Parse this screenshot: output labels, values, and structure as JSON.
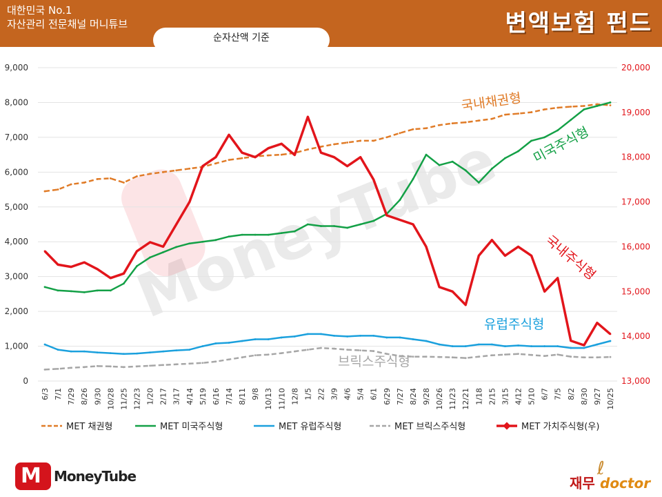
{
  "header": {
    "line1": "대한민국 No.1",
    "line2": "자산관리 전문채널 머니튜브",
    "subtitle": "순자산액 기준",
    "title": "변액보험 펀드"
  },
  "watermark": "MoneyTube",
  "footer": {
    "logo_text": "MoneyTube",
    "logo_letter": "M",
    "right_text_a": "재무",
    "right_text_b": "doctor"
  },
  "colors": {
    "bond": "#e07b27",
    "us": "#13a046",
    "europe": "#1aa0dd",
    "brics": "#a6a6a6",
    "value": "#e2151b",
    "header_bg": "#c4651f",
    "right_axis": "#e2151b"
  },
  "chart_data": {
    "type": "line",
    "x": [
      "6/3",
      "7/1",
      "7/29",
      "8/26",
      "9/30",
      "10/28",
      "11/25",
      "12/23",
      "1/20",
      "2/17",
      "3/17",
      "4/14",
      "5/19",
      "6/16",
      "7/14",
      "8/11",
      "9/8",
      "10/13",
      "11/10",
      "12/8",
      "1/5",
      "2/2",
      "3/9",
      "4/6",
      "5/4",
      "6/1",
      "6/29",
      "7/27",
      "8/24",
      "9/28",
      "10/26",
      "11/23",
      "12/21",
      "1/18",
      "2/15",
      "3/15",
      "4/12",
      "5/10",
      "6/7",
      "7/5",
      "8/2",
      "8/30",
      "9/27",
      "10/25"
    ],
    "y_left": {
      "min": 0,
      "max": 9000,
      "ticks": [
        "0",
        "1,000",
        "2,000",
        "3,000",
        "4,000",
        "5,000",
        "6,000",
        "7,000",
        "8,000",
        "9,000"
      ]
    },
    "y_right": {
      "min": 13000,
      "max": 20000,
      "ticks": [
        "13,000",
        "14,000",
        "15,000",
        "16,000",
        "17,000",
        "18,000",
        "19,000",
        "20,000"
      ]
    },
    "grid": true,
    "legend_position": "bottom",
    "series": [
      {
        "name": "MET 채권형",
        "axis": "left",
        "style": "dashed",
        "annotation": "국내채권형",
        "values": [
          5450,
          5500,
          5650,
          5700,
          5800,
          5820,
          5700,
          5880,
          5950,
          6000,
          6050,
          6100,
          6150,
          6250,
          6350,
          6400,
          6450,
          6480,
          6500,
          6550,
          6650,
          6730,
          6800,
          6850,
          6900,
          6900,
          7000,
          7120,
          7230,
          7260,
          7350,
          7400,
          7430,
          7480,
          7530,
          7650,
          7680,
          7720,
          7800,
          7850,
          7880,
          7900,
          7950,
          7920
        ]
      },
      {
        "name": "MET 미국주식형",
        "axis": "left",
        "style": "solid",
        "annotation": "미국주식형",
        "values": [
          2700,
          2600,
          2580,
          2550,
          2600,
          2600,
          2800,
          3300,
          3550,
          3700,
          3850,
          3950,
          4000,
          4050,
          4150,
          4200,
          4200,
          4200,
          4250,
          4300,
          4500,
          4450,
          4450,
          4400,
          4500,
          4600,
          4800,
          5200,
          5800,
          6500,
          6200,
          6300,
          6050,
          5700,
          6100,
          6400,
          6600,
          6900,
          7000,
          7200,
          7500,
          7800,
          7900,
          8000
        ]
      },
      {
        "name": "MET 유럽주식형",
        "axis": "left",
        "style": "solid",
        "annotation": "유럽주식형",
        "values": [
          1050,
          900,
          850,
          850,
          820,
          800,
          780,
          790,
          820,
          850,
          880,
          900,
          1000,
          1080,
          1100,
          1150,
          1200,
          1200,
          1250,
          1280,
          1350,
          1350,
          1300,
          1280,
          1300,
          1300,
          1250,
          1250,
          1200,
          1150,
          1050,
          1000,
          1000,
          1050,
          1050,
          1000,
          1020,
          1000,
          1000,
          1000,
          950,
          950,
          1050,
          1150
        ]
      },
      {
        "name": "MET 브릭스주식형",
        "axis": "left",
        "style": "dashed",
        "annotation": "브릭스주식형",
        "values": [
          330,
          350,
          380,
          400,
          430,
          420,
          400,
          420,
          440,
          460,
          480,
          500,
          520,
          560,
          620,
          680,
          740,
          760,
          800,
          850,
          900,
          950,
          930,
          900,
          880,
          860,
          780,
          720,
          700,
          700,
          690,
          680,
          660,
          700,
          740,
          760,
          780,
          750,
          720,
          760,
          700,
          680,
          680,
          690
        ]
      },
      {
        "name": "MET 가치주식형(우)",
        "axis": "right",
        "style": "solid",
        "annotation": "국내주식형",
        "values": [
          15900,
          15600,
          15550,
          15650,
          15500,
          15300,
          15400,
          15900,
          16100,
          16000,
          16500,
          17000,
          17800,
          18000,
          18500,
          18100,
          18000,
          18200,
          18300,
          18050,
          18900,
          18100,
          18000,
          17800,
          18000,
          17500,
          16700,
          16600,
          16500,
          16000,
          15100,
          15000,
          14700,
          15800,
          16150,
          15800,
          16000,
          15800,
          15000,
          15300,
          13900,
          13800,
          14300,
          14050
        ]
      }
    ]
  },
  "annotations": {
    "bond": "국내채권형",
    "us": "미국주식형",
    "domestic": "국내주식형",
    "europe": "유럽주식형",
    "brics": "브릭스주식형"
  }
}
